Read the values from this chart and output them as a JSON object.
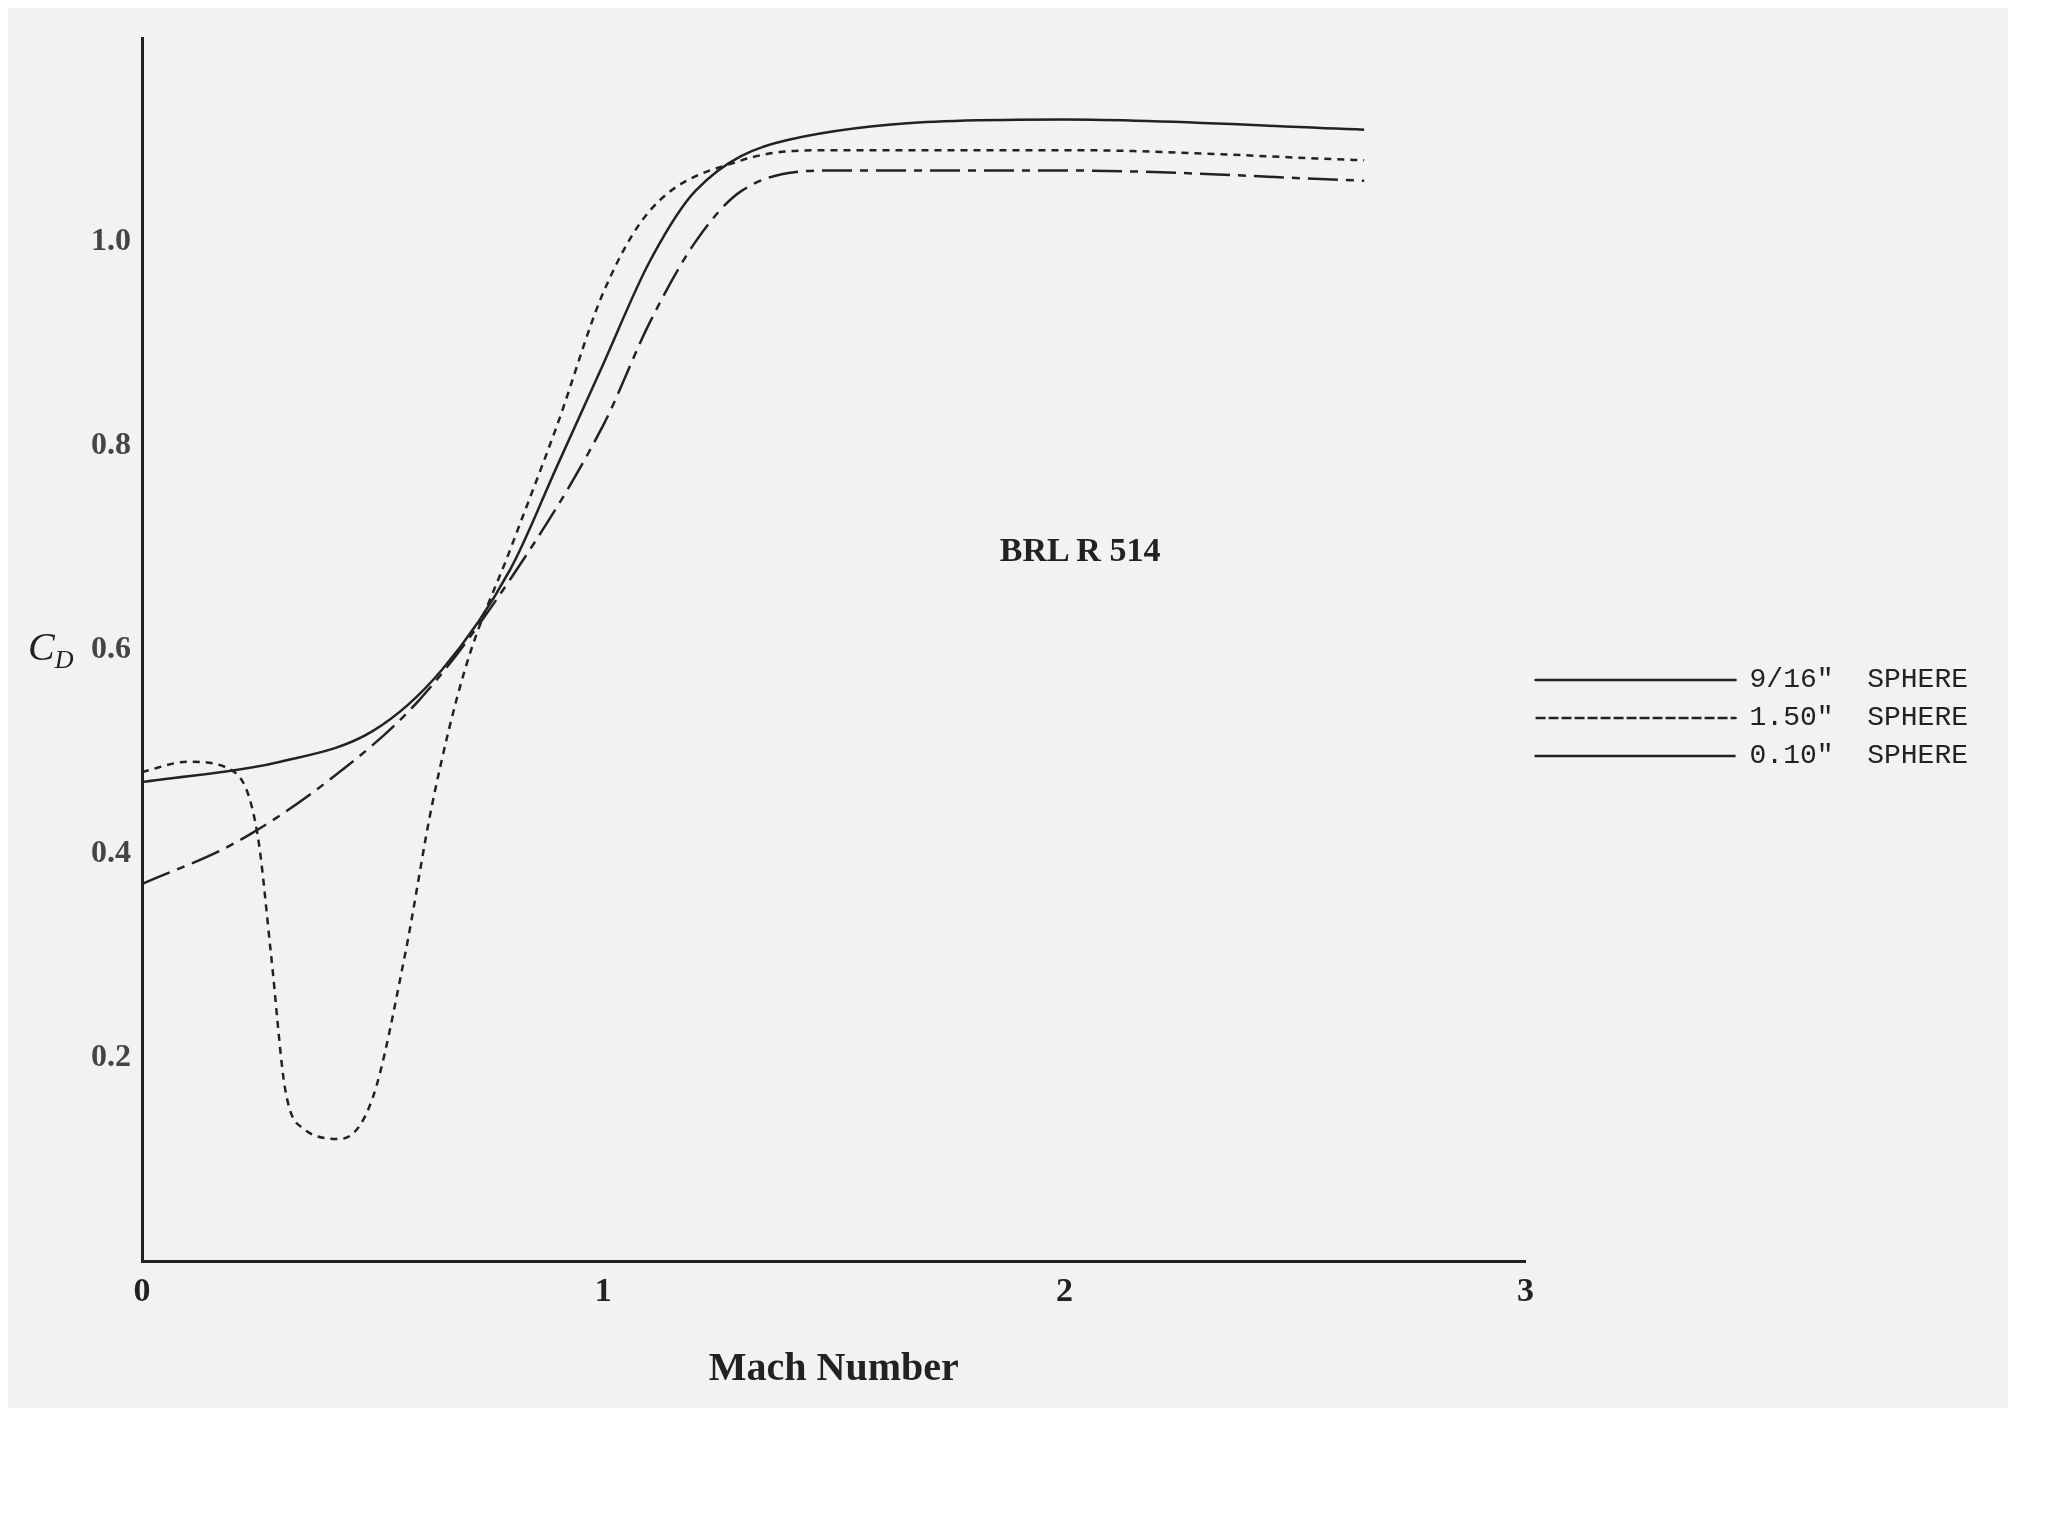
{
  "chart_data": {
    "type": "line",
    "xlabel": "Mach Number",
    "ylabel": "C$_{D}$",
    "xlim": [
      0,
      3
    ],
    "xticks": [
      0,
      1,
      2,
      3
    ],
    "ylim": [
      0,
      1.2
    ],
    "yticks": [
      0.2,
      0.4,
      0.6,
      0.8,
      {
        "value": 1,
        "label": "1.0"
      }
    ],
    "grid": false,
    "legend": "right",
    "marker": "none",
    "annotations": [
      "BRL R 514"
    ],
    "series": [
      {
        "name": "9/16\"  SPHERE",
        "color": "#222222",
        "line_style": "solid",
        "x": [
          0,
          0.3,
          0.5,
          0.65,
          0.8,
          0.9,
          1.0,
          1.1,
          1.2,
          1.4,
          2.0,
          2.65
        ],
        "values": [
          0.47,
          0.49,
          0.52,
          0.58,
          0.68,
          0.78,
          0.88,
          0.98,
          1.05,
          1.1,
          1.12,
          1.11
        ]
      },
      {
        "name": "1.50\"  SPHERE",
        "color": "#222222",
        "line_style": "dotted",
        "x": [
          0,
          0.1,
          0.2,
          0.25,
          0.28,
          0.31,
          0.35,
          0.43,
          0.5,
          0.57,
          0.63,
          0.7,
          0.8,
          0.9,
          1.0,
          1.1,
          1.3,
          1.5,
          2.0,
          2.65
        ],
        "values": [
          0.48,
          0.49,
          0.48,
          0.42,
          0.3,
          0.17,
          0.13,
          0.12,
          0.16,
          0.3,
          0.45,
          0.58,
          0.7,
          0.82,
          0.95,
          1.03,
          1.08,
          1.09,
          1.09,
          1.08
        ]
      },
      {
        "name": "0.10\"  SPHERE",
        "color": "#222222",
        "line_style": "dashed",
        "x": [
          0,
          0.2,
          0.4,
          0.6,
          0.8,
          1.0,
          1.1,
          1.2,
          1.3,
          1.5,
          2.0,
          2.65
        ],
        "values": [
          0.37,
          0.41,
          0.47,
          0.55,
          0.67,
          0.82,
          0.92,
          1.0,
          1.05,
          1.07,
          1.07,
          1.06
        ]
      }
    ]
  }
}
